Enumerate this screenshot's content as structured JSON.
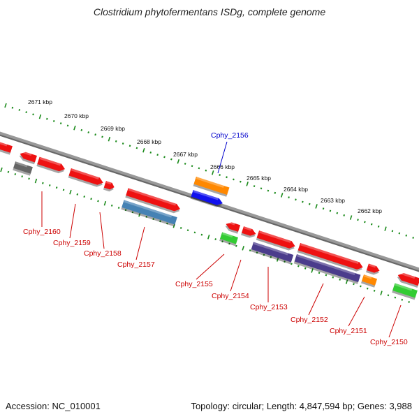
{
  "title": "Clostridium phytofermentans ISDg, complete genome",
  "accession": "Accession: NC_010001",
  "genome_info": "Topology: circular; Length: 4,847,594 bp; Genes: 3,988",
  "ticks": [
    {
      "label": "2671 kbp"
    },
    {
      "label": "2670 kbp"
    },
    {
      "label": "2669 kbp"
    },
    {
      "label": "2668 kbp"
    },
    {
      "label": "2667 kbp"
    },
    {
      "label": "2666 kbp"
    },
    {
      "label": "2665 kbp"
    },
    {
      "label": "2664 kbp"
    },
    {
      "label": "2663 kbp"
    },
    {
      "label": "2662 kbp"
    }
  ],
  "gene_labels": [
    {
      "name": "Cphy_2156",
      "color": "#0000cc"
    },
    {
      "name": "Cphy_2160",
      "color": "#cc0000"
    },
    {
      "name": "Cphy_2159",
      "color": "#cc0000"
    },
    {
      "name": "Cphy_2158",
      "color": "#cc0000"
    },
    {
      "name": "Cphy_2157",
      "color": "#cc0000"
    },
    {
      "name": "Cphy_2155",
      "color": "#cc0000"
    },
    {
      "name": "Cphy_2154",
      "color": "#cc0000"
    },
    {
      "name": "Cphy_2153",
      "color": "#cc0000"
    },
    {
      "name": "Cphy_2152",
      "color": "#cc0000"
    },
    {
      "name": "Cphy_2151",
      "color": "#cc0000"
    },
    {
      "name": "Cphy_2150",
      "color": "#cc0000"
    }
  ],
  "colors": {
    "red": "#ee1111",
    "orange": "#ff8800",
    "blue": "#1111ee",
    "steelblue": "#4682b4",
    "purple": "#4b3c8c",
    "green": "#33cc33",
    "gray": "#666666",
    "tick_green": "#1a8a1a",
    "backbone": "#888888"
  }
}
